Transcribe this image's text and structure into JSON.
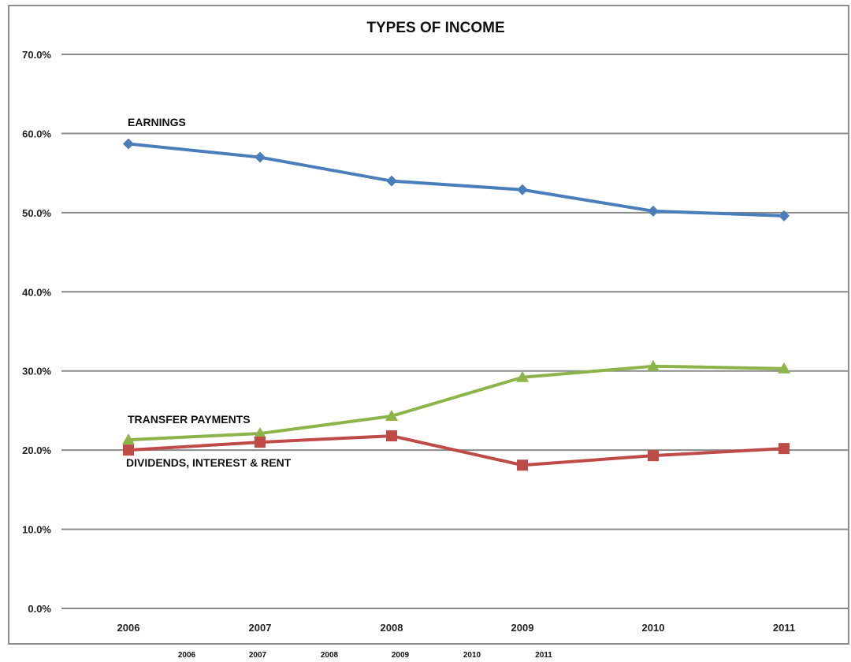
{
  "chart_data": {
    "type": "line",
    "title": "TYPES OF INCOME",
    "categories": [
      "2006",
      "2007",
      "2008",
      "2009",
      "2010",
      "2011"
    ],
    "ylim": [
      0,
      70
    ],
    "yticks": [
      "0.0%",
      "10.0%",
      "20.0%",
      "30.0%",
      "40.0%",
      "50.0%",
      "60.0%",
      "70.0%"
    ],
    "grid": true,
    "series": [
      {
        "name": "EARNINGS",
        "marker": "diamond",
        "color": "#4a7ebb",
        "values": [
          58.7,
          57.0,
          54.0,
          52.9,
          50.2,
          49.6
        ]
      },
      {
        "name": "TRANSFER PAYMENTS",
        "marker": "triangle",
        "color": "#8db44a",
        "values": [
          21.3,
          22.1,
          24.3,
          29.2,
          30.6,
          30.3
        ]
      },
      {
        "name": "DIVIDENDS, INTEREST & RENT",
        "marker": "square",
        "color": "#be4b48",
        "values": [
          20.0,
          21.0,
          21.8,
          18.1,
          19.3,
          20.2
        ]
      }
    ],
    "footer_labels": [
      "2006",
      "2007",
      "2008",
      "2009",
      "2010",
      "2011"
    ]
  }
}
